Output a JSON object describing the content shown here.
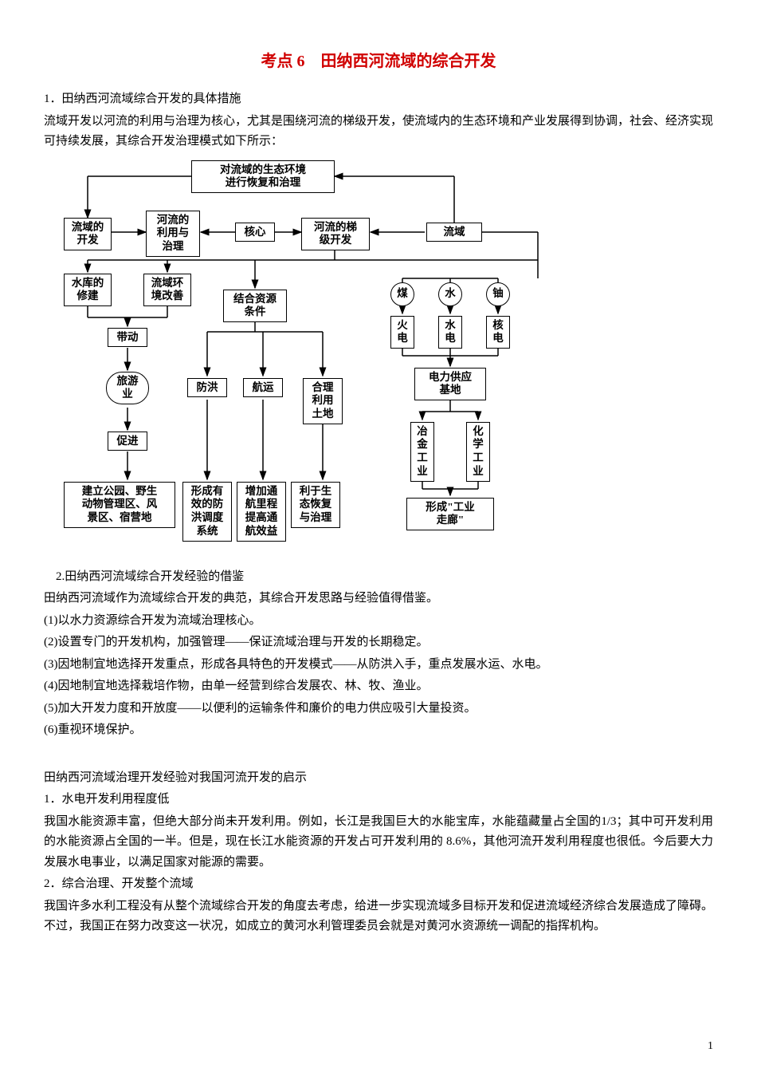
{
  "title": "考点 6　田纳西河流域的综合开发",
  "section1_heading": "1．田纳西河流域综合开发的具体措施",
  "section1_intro": "流域开发以河流的利用与治理为核心，尤其是围绕河流的梯级开发，使流域内的生态环境和产业发展得到协调，社会、经济实现可持续发展，其综合开发治理模式如下所示：",
  "diagram": {
    "nodes": {
      "top": "对流域的生态环境\n进行恢复和治理",
      "kaifa": "流域的\n开发",
      "liyong": "河流的\n利用与\n治理",
      "hexin": "核心",
      "tijikaifa": "河流的梯\n级开发",
      "liuyu": "流域",
      "shuiku": "水库的\n修建",
      "huanjing": "流域环\n境改善",
      "jiehe": "结合资源\n条件",
      "mei": "煤",
      "shui": "水",
      "you": "铀",
      "huodian": "火\n电",
      "shuidian": "水\n电",
      "hedian": "核\n电",
      "daidong": "带动",
      "dianli": "电力供应\n基地",
      "lvyou": "旅游\n业",
      "fanghong": "防洪",
      "hangyun": "航运",
      "heli": "合理\n利用\n土地",
      "cujin": "促进",
      "yejin": "冶\n金\n工\n业",
      "huaxue": "化\n学\n工\n业",
      "gongyuan": "建立公园、野生\n动物管理区、风\n景区、宿营地",
      "xingcheng1": "形成有\n效的防\n洪调度\n系统",
      "zengjia": "增加通\n航里程\n提高通\n航效益",
      "liyu": "利于生\n态恢复\n与治理",
      "zoulang": "形成\"工业\n走廊\""
    }
  },
  "section2_heading": "2.田纳西河流域综合开发经验的借鉴",
  "section2_intro": "田纳西河流域作为流域综合开发的典范，其综合开发思路与经验值得借鉴。",
  "points": [
    "(1)以水力资源综合开发为流域治理核心。",
    "(2)设置专门的开发机构，加强管理——保证流域治理与开发的长期稳定。",
    "(3)因地制宜地选择开发重点，形成各具特色的开发模式——从防洪入手，重点发展水运、水电。",
    "(4)因地制宜地选择栽培作物，由单一经营到综合发展农、林、牧、渔业。",
    "(5)加大开发力度和开放度——以便利的运输条件和廉价的电力供应吸引大量投资。",
    "(6)重视环境保护。"
  ],
  "section3_heading": "田纳西河流域治理开发经验对我国河流开发的启示",
  "sub1_heading": "1．水电开发利用程度低",
  "sub1_body": "我国水能资源丰富，但绝大部分尚未开发利用。例如，长江是我国巨大的水能宝库，水能蕴藏量占全国的1/3；其中可开发利用的水能资源占全国的一半。但是，现在长江水能资源的开发占可开发利用的 8.6%，其他河流开发利用程度也很低。今后要大力发展水电事业，以满足国家对能源的需要。",
  "sub2_heading": "2．综合治理、开发整个流域",
  "sub2_body": "我国许多水利工程没有从整个流域综合开发的角度去考虑，给进一步实现流域多目标开发和促进流域经济综合发展造成了障碍。不过，我国正在努力改变这一状况，如成立的黄河水利管理委员会就是对黄河水资源统一调配的指挥机构。",
  "page_number": "1"
}
